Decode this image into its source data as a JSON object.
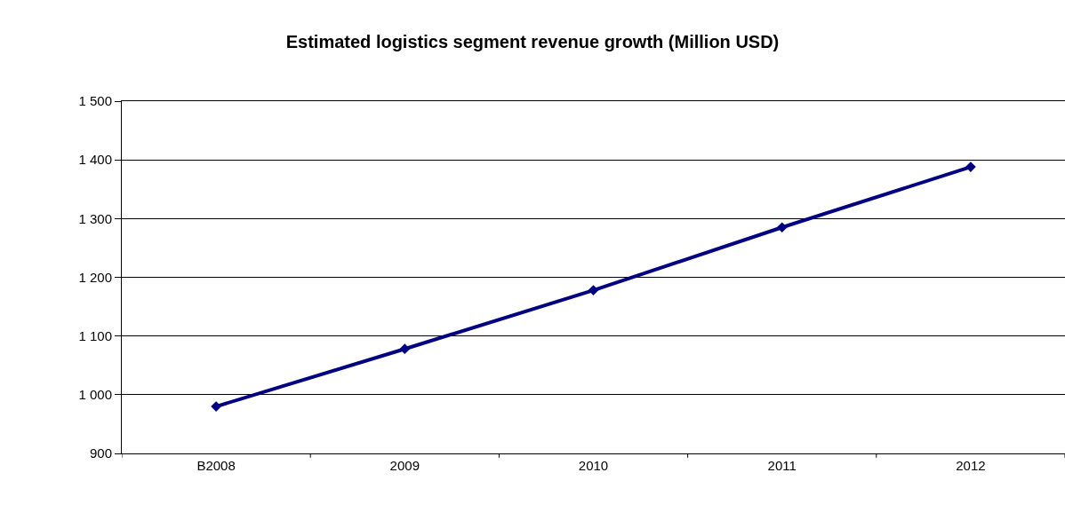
{
  "chart_data": {
    "type": "line",
    "title": "Estimated logistics segment revenue growth (Million USD)",
    "categories": [
      "B2008",
      "2009",
      "2010",
      "2011",
      "2012"
    ],
    "series": [
      {
        "color": "#000080",
        "values": [
          980,
          1078,
          1178,
          1285,
          1388
        ]
      }
    ],
    "ylim": [
      900,
      1500
    ],
    "yticks": [
      900,
      {
        "value": 1000,
        "label": "1 000"
      },
      {
        "value": 1100,
        "label": "1 100"
      },
      {
        "value": 1200,
        "label": "1 200"
      },
      {
        "value": 1300,
        "label": "1 300"
      },
      {
        "value": 1400,
        "label": "1 400"
      },
      {
        "value": 1500,
        "label": "1 500"
      }
    ],
    "grid": "y",
    "marker": "diamond",
    "line_style": "solid"
  }
}
